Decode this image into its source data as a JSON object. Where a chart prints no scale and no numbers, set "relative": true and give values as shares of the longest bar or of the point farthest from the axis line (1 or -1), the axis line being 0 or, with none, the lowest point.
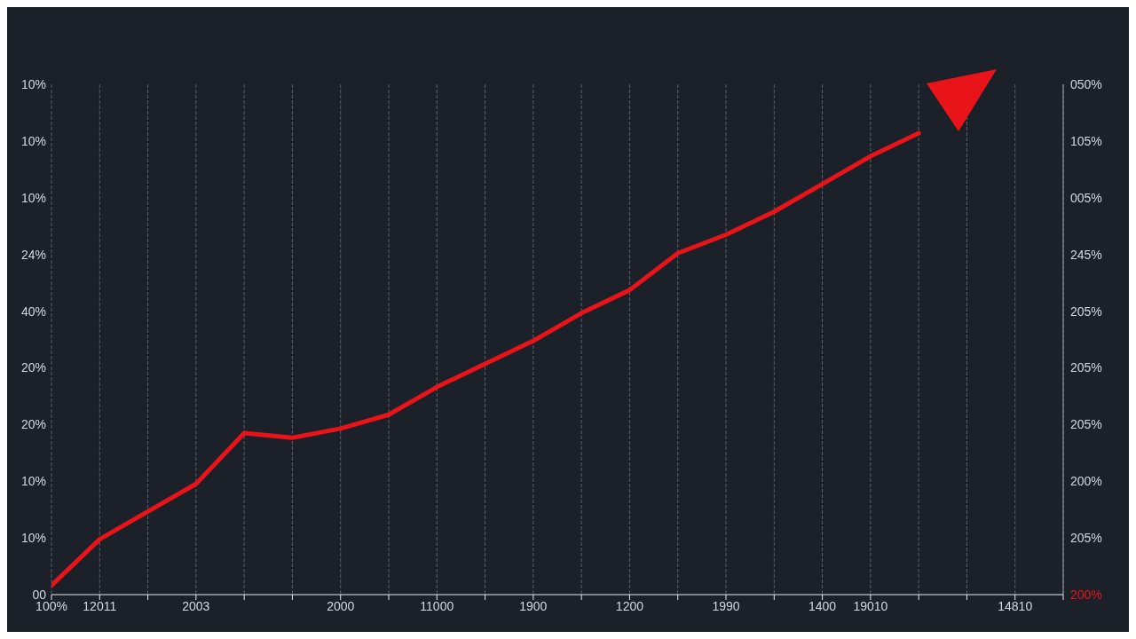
{
  "chart_data": {
    "type": "line",
    "relative": true,
    "categories": [
      "100%",
      "12011",
      null,
      "2003",
      null,
      null,
      "2000",
      null,
      "11000",
      null,
      "1900",
      null,
      "1200",
      null,
      "1990",
      null,
      "1400",
      "19010",
      null,
      null,
      "14810",
      null
    ],
    "series": [
      {
        "color": "#e8141a",
        "values": [
          0.02,
          0.12,
          0.18,
          0.24,
          0.35,
          0.34,
          0.36,
          0.39,
          0.45,
          0.5,
          0.55,
          0.61,
          0.66,
          0.74,
          0.78,
          0.83,
          0.89,
          0.95,
          1,
          null,
          null,
          null
        ]
      }
    ],
    "annotations": [
      "10%",
      "10%",
      "10%",
      "24%",
      "40%",
      "20%",
      "20%",
      "10%",
      "10%",
      "00",
      "050%",
      "105%",
      "005%",
      "245%",
      "205%",
      "205%",
      "205%",
      "200%",
      "205%",
      "200%"
    ],
    "grid": true,
    "legend": false,
    "marker": "none",
    "line_style": "solid"
  }
}
